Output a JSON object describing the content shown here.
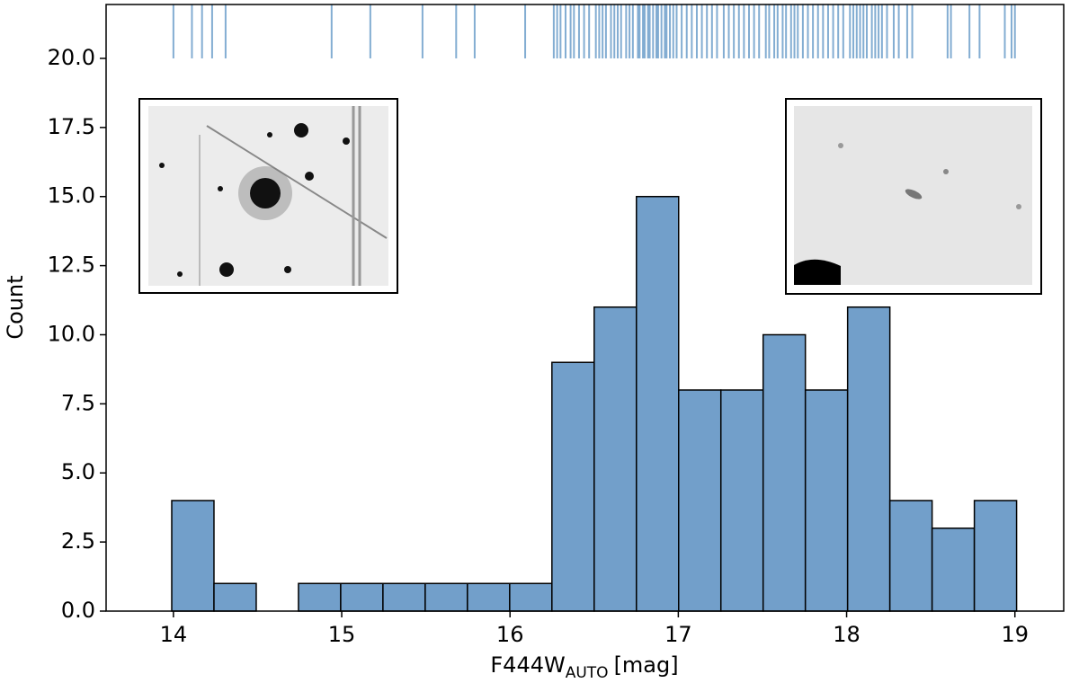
{
  "chart_data": {
    "type": "histogram",
    "xlabel": {
      "main": "F444W",
      "sub": "AUTO",
      "unit": "[mag]"
    },
    "ylabel": "Count",
    "bins": [
      13.99,
      14.241,
      14.492,
      14.743,
      14.994,
      15.245,
      15.496,
      15.747,
      15.998,
      16.249,
      16.5,
      16.751,
      17.002,
      17.253,
      17.504,
      17.755,
      18.006,
      18.257,
      18.508,
      18.759,
      19.01
    ],
    "values": [
      4,
      1,
      0,
      1,
      1,
      1,
      1,
      1,
      1,
      9,
      11,
      15,
      8,
      8,
      10,
      8,
      11,
      4,
      3,
      4
    ],
    "color": "#729fca",
    "rug": [
      14.0,
      14.11,
      14.17,
      14.23,
      14.31,
      14.94,
      15.17,
      15.48,
      15.68,
      15.79,
      16.09,
      16.26,
      16.28,
      16.3,
      16.33,
      16.36,
      16.38,
      16.41,
      16.44,
      16.47,
      16.51,
      16.53,
      16.55,
      16.57,
      16.6,
      16.62,
      16.64,
      16.66,
      16.69,
      16.71,
      16.73,
      16.76,
      16.77,
      16.79,
      16.8,
      16.82,
      16.83,
      16.85,
      16.87,
      16.88,
      16.9,
      16.92,
      16.93,
      16.95,
      16.97,
      16.99,
      17.02,
      17.05,
      17.08,
      17.11,
      17.14,
      17.17,
      17.2,
      17.23,
      17.27,
      17.3,
      17.33,
      17.36,
      17.39,
      17.42,
      17.45,
      17.48,
      17.52,
      17.54,
      17.57,
      17.59,
      17.62,
      17.64,
      17.67,
      17.69,
      17.71,
      17.74,
      17.77,
      17.8,
      17.83,
      17.86,
      17.89,
      17.92,
      17.95,
      17.98,
      18.02,
      18.04,
      18.06,
      18.08,
      18.1,
      18.12,
      18.15,
      18.17,
      18.19,
      18.21,
      18.24,
      18.28,
      18.31,
      18.36,
      18.39,
      18.6,
      18.62,
      18.73,
      18.79,
      18.94,
      18.98,
      19.0
    ],
    "rug_color": "#4f8bc0",
    "rug_base": 20,
    "xlim": [
      13.6,
      19.29
    ],
    "ylim": [
      0,
      21.95
    ],
    "xticks": [
      14,
      15,
      16,
      17,
      18,
      19
    ],
    "yticks": [
      {
        "value": 0,
        "label": "0.0"
      },
      {
        "value": 2.5,
        "label": "2.5"
      },
      {
        "value": 5,
        "label": "5.0"
      },
      {
        "value": 7.5,
        "label": "7.5"
      },
      {
        "value": 10,
        "label": "10.0"
      },
      {
        "value": 12.5,
        "label": "12.5"
      },
      {
        "value": 15,
        "label": "15.0"
      },
      {
        "value": 17.5,
        "label": "17.5"
      },
      {
        "value": 20,
        "label": "20.0"
      }
    ],
    "grid": false
  }
}
